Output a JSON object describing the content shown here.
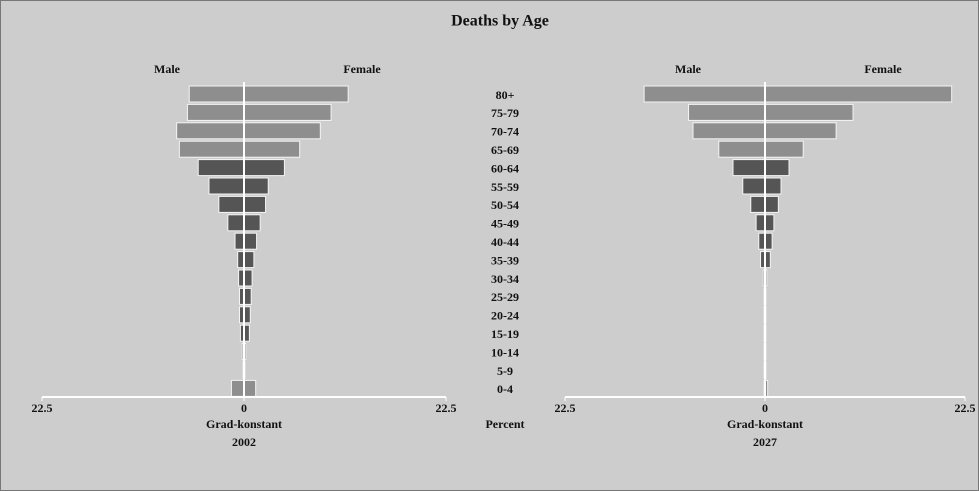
{
  "title": "Deaths by Age",
  "center_label": "Percent",
  "chart_data": [
    {
      "type": "pyramid",
      "categories": [
        "80+",
        "75-79",
        "70-74",
        "65-69",
        "60-64",
        "55-59",
        "50-54",
        "45-49",
        "40-44",
        "35-39",
        "30-34",
        "25-29",
        "20-24",
        "15-19",
        "10-14",
        "5-9",
        "0-4"
      ],
      "bar_colors": [
        "#8e8e8e",
        "#8e8e8e",
        "#8e8e8e",
        "#8e8e8e",
        "#555555",
        "#555555",
        "#555555",
        "#555555",
        "#555555",
        "#555555",
        "#555555",
        "#555555",
        "#555555",
        "#555555",
        "#555555",
        "#555555",
        "#8e8e8e"
      ],
      "series": [
        {
          "name": "Male",
          "values": [
            6.1,
            6.3,
            7.5,
            7.2,
            5.1,
            3.9,
            2.8,
            1.8,
            1.0,
            0.7,
            0.6,
            0.5,
            0.5,
            0.4,
            0.2,
            0.1,
            1.4
          ]
        },
        {
          "name": "Female",
          "values": [
            11.6,
            9.7,
            8.5,
            6.2,
            4.5,
            2.7,
            2.4,
            1.8,
            1.4,
            1.1,
            0.9,
            0.8,
            0.7,
            0.6,
            0.2,
            0.1,
            1.3
          ]
        }
      ],
      "xlim": [
        -22.5,
        22.5
      ],
      "xticks": [
        {
          "value": -22.5,
          "label": "22.5"
        },
        0,
        22.5
      ],
      "xlabel": "Grad-konstant",
      "subtitle": "2002"
    },
    {
      "type": "pyramid",
      "series": [
        {
          "name": "Male",
          "values": [
            13.6,
            8.6,
            8.1,
            5.2,
            3.6,
            2.5,
            1.6,
            1.0,
            0.7,
            0.5,
            0.2,
            0.1,
            0.1,
            0.1,
            0.1,
            0.1,
            0.1
          ]
        },
        {
          "name": "Female",
          "values": [
            21.0,
            9.9,
            8.0,
            4.3,
            2.7,
            1.8,
            1.5,
            1.0,
            0.8,
            0.6,
            0.2,
            0.1,
            0.1,
            0.1,
            0.1,
            0.1,
            0.3
          ]
        }
      ],
      "xlim": [
        -22.5,
        22.5
      ],
      "xticks": [
        {
          "value": -22.5,
          "label": "22.5"
        },
        0,
        22.5
      ],
      "xlabel": "Grad-konstant",
      "subtitle": "2027"
    }
  ]
}
